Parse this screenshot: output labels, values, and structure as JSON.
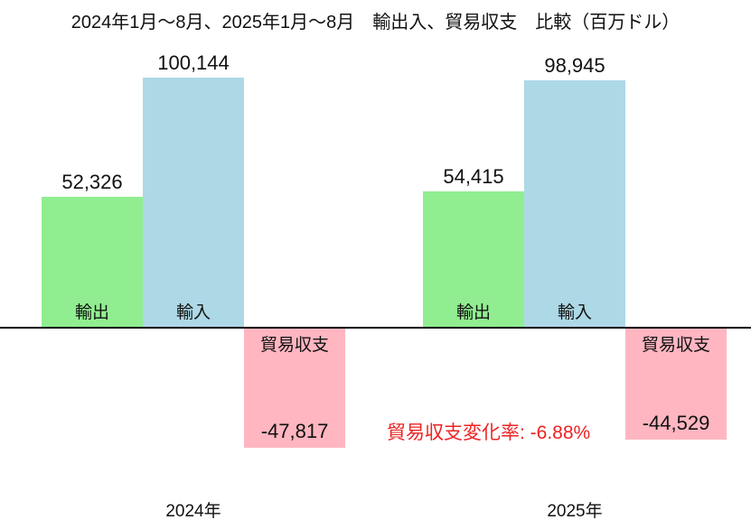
{
  "chart_data": {
    "type": "bar",
    "title": "2024年1月〜8月、2025年1月〜8月　輸出入、貿易収支　比較（百万ドル）",
    "unit": "百万ドル",
    "categories": [
      "2024年",
      "2025年"
    ],
    "series": [
      {
        "name": "輸出",
        "values": [
          52326,
          54415
        ],
        "labels": [
          "52,326",
          "54,415"
        ],
        "color": "#90EE90"
      },
      {
        "name": "輸入",
        "values": [
          100144,
          98945
        ],
        "labels": [
          "100,144",
          "98,945"
        ],
        "color": "#ADD8E6"
      },
      {
        "name": "貿易収支",
        "values": [
          -47817,
          -44529
        ],
        "labels": [
          "-47,817",
          "-44,529"
        ],
        "color": "#FFB6C1"
      }
    ],
    "annotation": {
      "text": "貿易収支変化率: -6.88%",
      "color": "#ee2222"
    },
    "baseline": 0,
    "grid": false,
    "axes_visible": "zero-line-only",
    "legend_position": "labels-inside-bars",
    "ylim": [
      -50000,
      110000
    ]
  }
}
